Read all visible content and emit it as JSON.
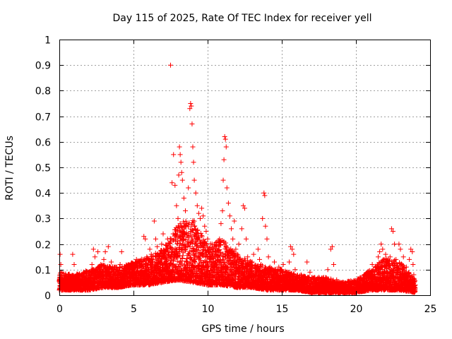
{
  "chart_data": {
    "type": "scatter",
    "title": "Day 115 of 2025, Rate Of TEC Index for receiver yell",
    "xlabel": "GPS time / hours",
    "ylabel": "ROTI / TECUs",
    "xlim": [
      0,
      25
    ],
    "ylim": [
      0,
      1
    ],
    "x_ticks": [
      0,
      5,
      10,
      15,
      20,
      25
    ],
    "x_tick_labels": [
      "0",
      "5",
      "10",
      "15",
      "20",
      "25"
    ],
    "y_ticks": [
      0,
      0.1,
      0.2,
      0.3,
      0.4,
      0.5,
      0.6,
      0.7,
      0.8,
      0.9,
      1
    ],
    "y_tick_labels": [
      "0",
      "0.1",
      "0.2",
      "0.3",
      "0.4",
      "0.5",
      "0.6",
      "0.7",
      "0.8",
      "0.9",
      "1"
    ],
    "grid": true,
    "marker": "+",
    "color": "#ff0000",
    "series": [
      {
        "name": "ROTI",
        "points": [
          [
            0.0,
            0.02
          ],
          [
            0.05,
            0.16
          ],
          [
            0.1,
            0.12
          ],
          [
            0.15,
            0.09
          ],
          [
            0.2,
            0.05
          ],
          [
            0.3,
            0.03
          ],
          [
            0.4,
            0.06
          ],
          [
            0.5,
            0.04
          ],
          [
            0.6,
            0.08
          ],
          [
            0.7,
            0.03
          ],
          [
            0.8,
            0.05
          ],
          [
            0.9,
            0.16
          ],
          [
            1.0,
            0.12
          ],
          [
            1.1,
            0.04
          ],
          [
            1.2,
            0.06
          ],
          [
            1.3,
            0.03
          ],
          [
            1.5,
            0.05
          ],
          [
            1.7,
            0.04
          ],
          [
            1.9,
            0.06
          ],
          [
            2.0,
            0.03
          ],
          [
            2.1,
            0.08
          ],
          [
            2.2,
            0.12
          ],
          [
            2.3,
            0.18
          ],
          [
            2.4,
            0.15
          ],
          [
            2.5,
            0.1
          ],
          [
            2.6,
            0.17
          ],
          [
            2.7,
            0.07
          ],
          [
            2.8,
            0.12
          ],
          [
            2.9,
            0.05
          ],
          [
            3.0,
            0.14
          ],
          [
            3.1,
            0.17
          ],
          [
            3.2,
            0.1
          ],
          [
            3.3,
            0.19
          ],
          [
            3.4,
            0.08
          ],
          [
            3.5,
            0.13
          ],
          [
            3.6,
            0.06
          ],
          [
            3.7,
            0.11
          ],
          [
            3.8,
            0.07
          ],
          [
            3.9,
            0.05
          ],
          [
            4.0,
            0.09
          ],
          [
            4.1,
            0.12
          ],
          [
            4.2,
            0.17
          ],
          [
            4.3,
            0.08
          ],
          [
            4.4,
            0.06
          ],
          [
            4.5,
            0.1
          ],
          [
            4.6,
            0.07
          ],
          [
            4.7,
            0.05
          ],
          [
            4.8,
            0.09
          ],
          [
            4.9,
            0.12
          ],
          [
            5.0,
            0.08
          ],
          [
            5.1,
            0.1
          ],
          [
            5.2,
            0.14
          ],
          [
            5.3,
            0.11
          ],
          [
            5.4,
            0.13
          ],
          [
            5.5,
            0.09
          ],
          [
            5.6,
            0.12
          ],
          [
            5.7,
            0.23
          ],
          [
            5.8,
            0.22
          ],
          [
            5.9,
            0.15
          ],
          [
            6.0,
            0.1
          ],
          [
            6.1,
            0.18
          ],
          [
            6.2,
            0.16
          ],
          [
            6.3,
            0.12
          ],
          [
            6.4,
            0.29
          ],
          [
            6.5,
            0.22
          ],
          [
            6.6,
            0.19
          ],
          [
            6.7,
            0.15
          ],
          [
            6.8,
            0.13
          ],
          [
            6.9,
            0.2
          ],
          [
            7.0,
            0.24
          ],
          [
            7.1,
            0.17
          ],
          [
            7.2,
            0.14
          ],
          [
            7.3,
            0.22
          ],
          [
            7.4,
            0.16
          ],
          [
            7.5,
            0.9
          ],
          [
            7.6,
            0.44
          ],
          [
            7.7,
            0.55
          ],
          [
            7.8,
            0.43
          ],
          [
            7.9,
            0.35
          ],
          [
            8.0,
            0.3
          ],
          [
            8.05,
            0.47
          ],
          [
            8.1,
            0.58
          ],
          [
            8.15,
            0.55
          ],
          [
            8.2,
            0.52
          ],
          [
            8.25,
            0.48
          ],
          [
            8.3,
            0.45
          ],
          [
            8.4,
            0.38
          ],
          [
            8.5,
            0.33
          ],
          [
            8.6,
            0.28
          ],
          [
            8.7,
            0.42
          ],
          [
            8.8,
            0.73
          ],
          [
            8.85,
            0.75
          ],
          [
            8.9,
            0.74
          ],
          [
            8.95,
            0.67
          ],
          [
            9.0,
            0.58
          ],
          [
            9.05,
            0.52
          ],
          [
            9.1,
            0.45
          ],
          [
            9.2,
            0.4
          ],
          [
            9.3,
            0.35
          ],
          [
            9.4,
            0.32
          ],
          [
            9.5,
            0.3
          ],
          [
            9.6,
            0.34
          ],
          [
            9.7,
            0.31
          ],
          [
            9.8,
            0.27
          ],
          [
            9.9,
            0.25
          ],
          [
            10.0,
            0.22
          ],
          [
            10.1,
            0.18
          ],
          [
            10.2,
            0.15
          ],
          [
            10.3,
            0.2
          ],
          [
            10.4,
            0.13
          ],
          [
            10.5,
            0.17
          ],
          [
            10.6,
            0.12
          ],
          [
            10.7,
            0.15
          ],
          [
            10.8,
            0.22
          ],
          [
            10.9,
            0.28
          ],
          [
            11.0,
            0.33
          ],
          [
            11.05,
            0.45
          ],
          [
            11.1,
            0.53
          ],
          [
            11.15,
            0.62
          ],
          [
            11.2,
            0.61
          ],
          [
            11.25,
            0.58
          ],
          [
            11.3,
            0.42
          ],
          [
            11.4,
            0.36
          ],
          [
            11.5,
            0.31
          ],
          [
            11.6,
            0.26
          ],
          [
            11.7,
            0.22
          ],
          [
            11.8,
            0.29
          ],
          [
            11.9,
            0.18
          ],
          [
            12.0,
            0.16
          ],
          [
            12.1,
            0.2
          ],
          [
            12.2,
            0.14
          ],
          [
            12.3,
            0.26
          ],
          [
            12.4,
            0.35
          ],
          [
            12.5,
            0.34
          ],
          [
            12.6,
            0.22
          ],
          [
            12.7,
            0.15
          ],
          [
            12.8,
            0.12
          ],
          [
            12.9,
            0.1
          ],
          [
            13.0,
            0.13
          ],
          [
            13.1,
            0.16
          ],
          [
            13.2,
            0.11
          ],
          [
            13.3,
            0.09
          ],
          [
            13.4,
            0.18
          ],
          [
            13.5,
            0.14
          ],
          [
            13.6,
            0.12
          ],
          [
            13.7,
            0.3
          ],
          [
            13.8,
            0.4
          ],
          [
            13.85,
            0.39
          ],
          [
            13.9,
            0.27
          ],
          [
            14.0,
            0.22
          ],
          [
            14.1,
            0.15
          ],
          [
            14.2,
            0.11
          ],
          [
            14.3,
            0.08
          ],
          [
            14.4,
            0.1
          ],
          [
            14.5,
            0.13
          ],
          [
            14.6,
            0.09
          ],
          [
            14.7,
            0.07
          ],
          [
            14.8,
            0.11
          ],
          [
            14.9,
            0.08
          ],
          [
            15.0,
            0.1
          ],
          [
            15.1,
            0.12
          ],
          [
            15.2,
            0.07
          ],
          [
            15.3,
            0.09
          ],
          [
            15.4,
            0.06
          ],
          [
            15.5,
            0.13
          ],
          [
            15.6,
            0.19
          ],
          [
            15.7,
            0.18
          ],
          [
            15.8,
            0.16
          ],
          [
            15.9,
            0.1
          ],
          [
            16.0,
            0.07
          ],
          [
            16.1,
            0.05
          ],
          [
            16.3,
            0.08
          ],
          [
            16.5,
            0.06
          ],
          [
            16.7,
            0.13
          ],
          [
            16.9,
            0.09
          ],
          [
            17.1,
            0.06
          ],
          [
            17.3,
            0.05
          ],
          [
            17.5,
            0.07
          ],
          [
            17.7,
            0.04
          ],
          [
            17.9,
            0.06
          ],
          [
            18.1,
            0.1
          ],
          [
            18.3,
            0.18
          ],
          [
            18.4,
            0.19
          ],
          [
            18.5,
            0.12
          ],
          [
            18.7,
            0.06
          ],
          [
            18.9,
            0.04
          ],
          [
            19.1,
            0.05
          ],
          [
            19.3,
            0.03
          ],
          [
            19.5,
            0.04
          ],
          [
            19.7,
            0.02
          ],
          [
            19.9,
            0.03
          ],
          [
            20.1,
            0.05
          ],
          [
            20.3,
            0.04
          ],
          [
            20.5,
            0.03
          ],
          [
            20.7,
            0.06
          ],
          [
            20.9,
            0.08
          ],
          [
            21.1,
            0.12
          ],
          [
            21.3,
            0.1
          ],
          [
            21.5,
            0.15
          ],
          [
            21.6,
            0.17
          ],
          [
            21.7,
            0.2
          ],
          [
            21.8,
            0.18
          ],
          [
            21.9,
            0.14
          ],
          [
            22.0,
            0.16
          ],
          [
            22.1,
            0.13
          ],
          [
            22.2,
            0.11
          ],
          [
            22.3,
            0.15
          ],
          [
            22.4,
            0.26
          ],
          [
            22.5,
            0.25
          ],
          [
            22.6,
            0.2
          ],
          [
            22.7,
            0.14
          ],
          [
            22.8,
            0.1
          ],
          [
            22.9,
            0.2
          ],
          [
            23.0,
            0.18
          ],
          [
            23.1,
            0.12
          ],
          [
            23.2,
            0.15
          ],
          [
            23.3,
            0.08
          ],
          [
            23.4,
            0.11
          ],
          [
            23.5,
            0.07
          ],
          [
            23.6,
            0.14
          ],
          [
            23.7,
            0.18
          ],
          [
            23.8,
            0.17
          ],
          [
            23.85,
            0.12
          ],
          [
            23.9,
            0.08
          ],
          [
            24.0,
            0.04
          ]
        ],
        "background_band": [
          [
            0,
            0.02,
            0.09
          ],
          [
            1,
            0.02,
            0.08
          ],
          [
            2,
            0.02,
            0.1
          ],
          [
            3,
            0.03,
            0.12
          ],
          [
            4,
            0.03,
            0.11
          ],
          [
            5,
            0.04,
            0.13
          ],
          [
            6,
            0.04,
            0.15
          ],
          [
            7,
            0.05,
            0.18
          ],
          [
            8,
            0.06,
            0.28
          ],
          [
            9,
            0.05,
            0.3
          ],
          [
            10,
            0.04,
            0.2
          ],
          [
            11,
            0.04,
            0.22
          ],
          [
            12,
            0.03,
            0.16
          ],
          [
            13,
            0.03,
            0.13
          ],
          [
            14,
            0.02,
            0.11
          ],
          [
            15,
            0.02,
            0.1
          ],
          [
            16,
            0.02,
            0.08
          ],
          [
            17,
            0.01,
            0.07
          ],
          [
            18,
            0.01,
            0.07
          ],
          [
            19,
            0.01,
            0.05
          ],
          [
            20,
            0.01,
            0.06
          ],
          [
            21,
            0.02,
            0.1
          ],
          [
            22,
            0.02,
            0.15
          ],
          [
            23,
            0.02,
            0.13
          ],
          [
            24,
            0.01,
            0.06
          ]
        ]
      }
    ]
  }
}
